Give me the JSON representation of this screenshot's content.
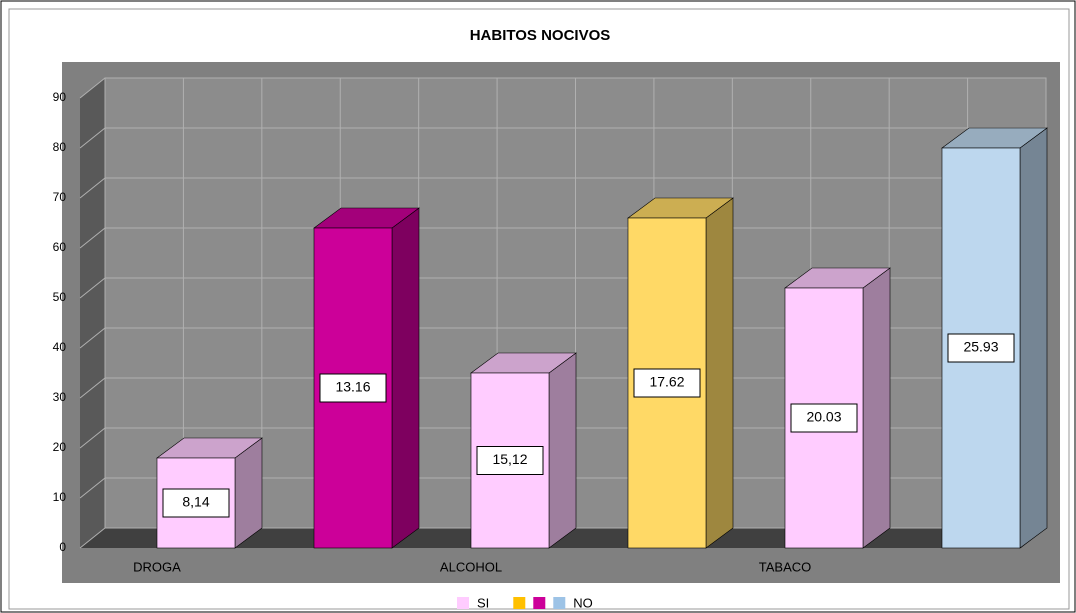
{
  "chart_data": {
    "type": "bar3d",
    "title": "HABITOS NOCIVOS",
    "categories": [
      "DROGA",
      null,
      "ALCOHOL",
      null,
      "TABACO",
      null
    ],
    "values": [
      18,
      64,
      35,
      66,
      52,
      80
    ],
    "colors": [
      "#ffccff",
      "#cc0099",
      "#ffccff",
      "#ffd966",
      "#ffccff",
      "#bdd7ee"
    ],
    "bar_labels": [
      "8,14",
      "13.16",
      "15,12",
      "17.62",
      "20.03",
      "25.93"
    ],
    "ylim": [
      0,
      90
    ],
    "yticks": [
      0,
      10,
      20,
      30,
      40,
      50,
      60,
      70,
      80,
      90
    ],
    "grid": true,
    "legend": [
      {
        "name": "SI",
        "color": "#ffccff"
      },
      {
        "color": "#ffc000"
      },
      {
        "color": "#cc0099"
      },
      {
        "name": "NO",
        "color": "#9dc3e6"
      }
    ]
  }
}
